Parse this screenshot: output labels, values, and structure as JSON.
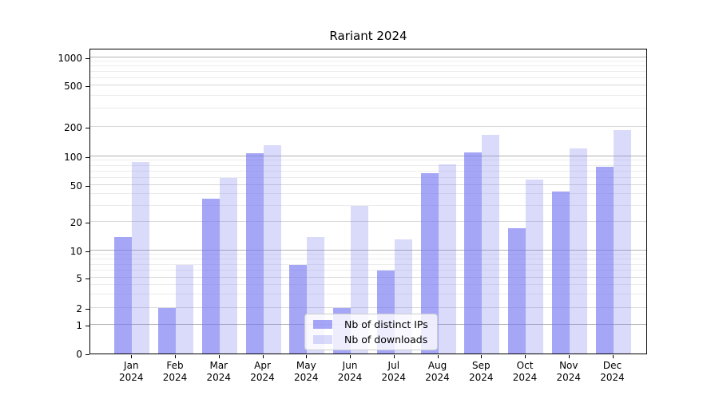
{
  "chart_data": {
    "type": "bar",
    "title": "Rariant 2024",
    "categories": [
      "Jan 2024",
      "Feb 2024",
      "Mar 2024",
      "Apr 2024",
      "May 2024",
      "Jun 2024",
      "Jul 2024",
      "Aug 2024",
      "Sep 2024",
      "Oct 2024",
      "Nov 2024",
      "Dec 2024"
    ],
    "x_months": [
      "Jan",
      "Feb",
      "Mar",
      "Apr",
      "May",
      "Jun",
      "Jul",
      "Aug",
      "Sep",
      "Oct",
      "Nov",
      "Dec"
    ],
    "year_label": "2024",
    "series": [
      {
        "name": "Nb of distinct IPs",
        "values": [
          14,
          2,
          36,
          108,
          7,
          2,
          6,
          67,
          110,
          17,
          43,
          78
        ]
      },
      {
        "name": "Nb of downloads",
        "values": [
          87,
          7,
          60,
          130,
          14,
          30,
          13,
          82,
          165,
          57,
          120,
          185
        ]
      }
    ],
    "y_scale": "symlog",
    "y_ticks": [
      0,
      1,
      2,
      5,
      10,
      20,
      50,
      100,
      200,
      500,
      1000
    ],
    "ylim": [
      0,
      1250
    ],
    "xlabel": "",
    "ylabel": "",
    "grid": true,
    "legend_position": "lower center"
  },
  "colors": {
    "bar_dark_fill": "rgba(118,118,242,0.65)",
    "bar_light_fill": "rgba(118,118,242,0.27)",
    "grid_major": "#b2b2b2",
    "grid_mid": "#d9d9d9",
    "grid_minor": "#ececec",
    "axis": "#000000",
    "background": "#ffffff"
  }
}
